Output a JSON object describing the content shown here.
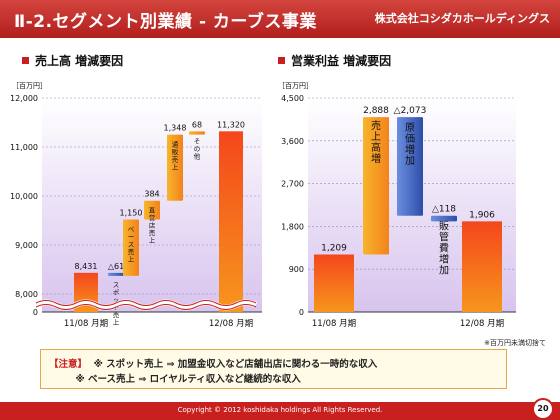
{
  "header": {
    "title": "Ⅱ-2.セグメント別業績 - カーブス事業",
    "company": "株式会社コシダカホールディングス"
  },
  "left_section_title": "売上高 増減要因",
  "right_section_title": "営業利益 増減要因",
  "colors": {
    "brand_red": "#c8201e",
    "bar_red": "#ee5a1e",
    "bar_orange": "#f89a1c",
    "bar_blue": "#4a6cc8"
  },
  "chart_data": [
    {
      "type": "waterfall",
      "unit": "［百万円］",
      "ylim": [
        0,
        12000
      ],
      "yticks": [
        "0",
        "8,000",
        "9,000",
        "10,000",
        "11,000",
        "12,000"
      ],
      "axis_break": true,
      "categories_labels": [
        "11/08 月期",
        "12/08 月期"
      ],
      "bars": [
        {
          "label": "",
          "value": 8431,
          "value_label": "8,431",
          "kind": "total"
        },
        {
          "label": "スポット売上",
          "value": -61,
          "value_label": "△61",
          "kind": "decrease"
        },
        {
          "label": "ベース売上",
          "value": 1150,
          "value_label": "1,150",
          "kind": "increase"
        },
        {
          "label": "直営店売上",
          "value": 384,
          "value_label": "384",
          "kind": "increase"
        },
        {
          "label": "通販売上",
          "value": 1348,
          "value_label": "1,348",
          "kind": "increase"
        },
        {
          "label": "その他",
          "value": 68,
          "value_label": "68",
          "kind": "increase"
        },
        {
          "label": "",
          "value": 11320,
          "value_label": "11,320",
          "kind": "total"
        }
      ]
    },
    {
      "type": "waterfall",
      "unit": "［百万円］",
      "ylim": [
        0,
        4500
      ],
      "yticks": [
        "0",
        "900",
        "1,800",
        "2,700",
        "3,600",
        "4,500"
      ],
      "categories_labels": [
        "11/08 月期",
        "12/08 月期"
      ],
      "bars": [
        {
          "label": "",
          "value": 1209,
          "value_label": "1,209",
          "kind": "total"
        },
        {
          "label": "売上高増",
          "value": 2888,
          "value_label": "2,888",
          "kind": "increase"
        },
        {
          "label": "原価増加",
          "value": -2073,
          "value_label": "△2,073",
          "kind": "decrease"
        },
        {
          "label": "販管費増加",
          "value": -118,
          "value_label": "△118",
          "kind": "decrease"
        },
        {
          "label": "",
          "value": 1906,
          "value_label": "1,906",
          "kind": "total"
        }
      ]
    }
  ],
  "unit_note": "※百万円未満切捨て",
  "notes": {
    "label": "【注意】",
    "line1": "※ スポット売上 ⇒ 加盟金収入など店舗出店に関わる一時的な収入",
    "line2": "※ ベース売上 ⇒ ロイヤルティ収入など継続的な収入"
  },
  "footer": {
    "copyright": "Copyright © 2012 koshidaka holdings All Rights Reserved.",
    "page": "20"
  }
}
